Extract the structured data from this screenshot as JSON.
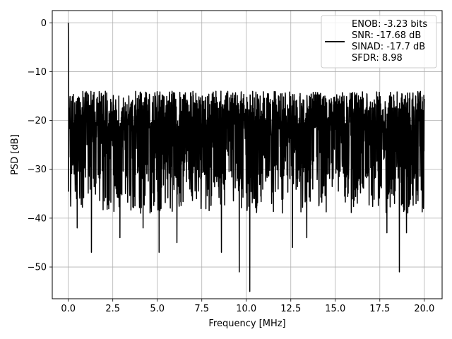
{
  "chart_data": {
    "type": "line",
    "xlabel": "Frequency [MHz]",
    "ylabel": "PSD [dB]",
    "xlim": [
      -0.9,
      21.0
    ],
    "ylim": [
      -56.5,
      2.5
    ],
    "x_ticks": [
      0.0,
      2.5,
      5.0,
      7.5,
      10.0,
      12.5,
      15.0,
      17.5,
      20.0
    ],
    "x_tick_labels": [
      "0.0",
      "2.5",
      "5.0",
      "7.5",
      "10.0",
      "12.5",
      "15.0",
      "17.5",
      "20.0"
    ],
    "y_ticks": [
      0,
      -10,
      -20,
      -30,
      -40,
      -50
    ],
    "y_tick_labels": [
      "0",
      "−10",
      "−20",
      "−30",
      "−40",
      "−50"
    ],
    "grid": true,
    "legend_position": "top-right",
    "legend": [
      "ENOB: -3.23 bits",
      "SNR: -17.68 dB",
      "SINAD: -17.7 dB",
      "SFDR: 8.98"
    ],
    "series": [
      {
        "color": "#000000",
        "description": "dense noisy PSD trace over 0-20 MHz; DC peak at 0 dB, noise floor approx -13 to -45 dB, average around -22 dB",
        "x_range": [
          0.0,
          20.0
        ],
        "peak": {
          "x": 0.0,
          "y": 0.0
        },
        "upper_envelope": [
          -13,
          -15
        ],
        "lower_envelope": [
          -35,
          -45
        ],
        "deep_dips": [
          {
            "x": 0.5,
            "y": -42
          },
          {
            "x": 1.3,
            "y": -47
          },
          {
            "x": 2.9,
            "y": -44
          },
          {
            "x": 4.2,
            "y": -42
          },
          {
            "x": 5.1,
            "y": -47
          },
          {
            "x": 6.1,
            "y": -45
          },
          {
            "x": 8.6,
            "y": -47
          },
          {
            "x": 9.6,
            "y": -51
          },
          {
            "x": 10.2,
            "y": -55
          },
          {
            "x": 12.6,
            "y": -46
          },
          {
            "x": 13.4,
            "y": -44
          },
          {
            "x": 17.9,
            "y": -43
          },
          {
            "x": 18.6,
            "y": -51
          },
          {
            "x": 19.0,
            "y": -43
          }
        ]
      }
    ]
  }
}
